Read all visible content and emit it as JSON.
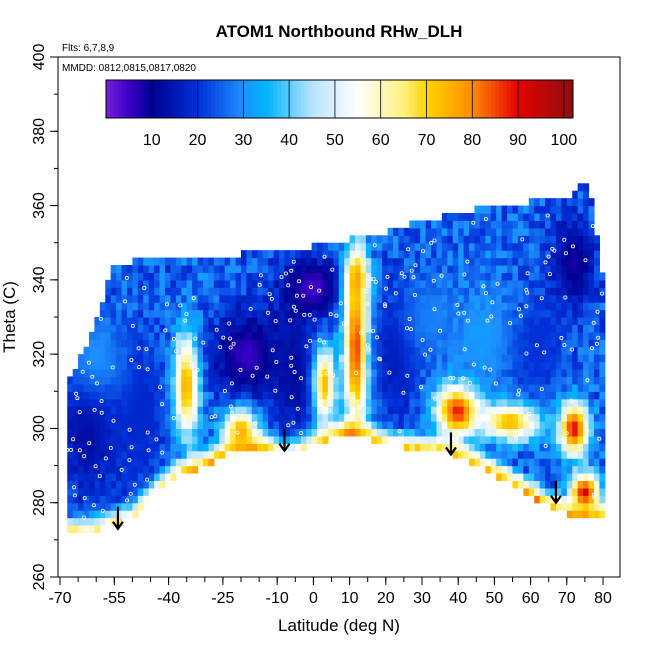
{
  "chart_data": {
    "type": "heatmap",
    "title": "ATOM1 Northbound RHw_DLH",
    "annotations": [
      "Flts: 6,7,8,9",
      "MMDD: 0812,0815,0817,0820"
    ],
    "xlabel": "Latitude (deg N)",
    "ylabel": "Theta (C)",
    "xlim": [
      -70,
      80
    ],
    "ylim": [
      260,
      400
    ],
    "x_major_ticks": [
      -70,
      -55,
      -40,
      -25,
      -10,
      0,
      10,
      20,
      30,
      40,
      50,
      60,
      70,
      80
    ],
    "x_tick_labels": [
      "-70",
      "-55",
      "-40",
      "-25",
      "-10",
      "0",
      "10",
      "20",
      "30",
      "40",
      "50",
      "60",
      "70",
      "80"
    ],
    "y_ticks": [
      260,
      280,
      300,
      320,
      340,
      360,
      380,
      400
    ],
    "y_tick_labels": [
      "260",
      "280",
      "300",
      "320",
      "340",
      "360",
      "380",
      "400"
    ],
    "colorbar": {
      "range": [
        0,
        102
      ],
      "ticks": [
        10,
        20,
        30,
        40,
        50,
        60,
        70,
        80,
        90,
        100
      ],
      "tick_labels": [
        "10",
        "20",
        "30",
        "40",
        "50",
        "60",
        "70",
        "80",
        "90",
        "100"
      ],
      "stops": [
        {
          "v": 0,
          "c": "#7a1fd6"
        },
        {
          "v": 5,
          "c": "#3a00c8"
        },
        {
          "v": 10,
          "c": "#000090"
        },
        {
          "v": 20,
          "c": "#0030d8"
        },
        {
          "v": 30,
          "c": "#1e90ff"
        },
        {
          "v": 35,
          "c": "#00b4ff"
        },
        {
          "v": 45,
          "c": "#b8e4ff"
        },
        {
          "v": 55,
          "c": "#ffffff"
        },
        {
          "v": 65,
          "c": "#fff080"
        },
        {
          "v": 70,
          "c": "#ffd400"
        },
        {
          "v": 80,
          "c": "#ff8c00"
        },
        {
          "v": 90,
          "c": "#e60000"
        },
        {
          "v": 102,
          "c": "#8b1010"
        }
      ]
    },
    "surface_lower_boundary": [
      {
        "lat": -68,
        "theta": 272
      },
      {
        "lat": -62,
        "theta": 272
      },
      {
        "lat": -56,
        "theta": 274
      },
      {
        "lat": -50,
        "theta": 276
      },
      {
        "lat": -44,
        "theta": 283
      },
      {
        "lat": -38,
        "theta": 287
      },
      {
        "lat": -30,
        "theta": 290
      },
      {
        "lat": -22,
        "theta": 294
      },
      {
        "lat": -14,
        "theta": 295
      },
      {
        "lat": -8,
        "theta": 293
      },
      {
        "lat": 0,
        "theta": 296
      },
      {
        "lat": 10,
        "theta": 299
      },
      {
        "lat": 20,
        "theta": 296
      },
      {
        "lat": 30,
        "theta": 294
      },
      {
        "lat": 38,
        "theta": 293
      },
      {
        "lat": 45,
        "theta": 290
      },
      {
        "lat": 55,
        "theta": 285
      },
      {
        "lat": 65,
        "theta": 279
      },
      {
        "lat": 72,
        "theta": 276
      },
      {
        "lat": 80,
        "theta": 276
      }
    ],
    "data_upper_boundary": [
      {
        "lat": -68,
        "theta": 312
      },
      {
        "lat": -62,
        "theta": 322
      },
      {
        "lat": -58,
        "theta": 334
      },
      {
        "lat": -55,
        "theta": 344
      },
      {
        "lat": -50,
        "theta": 344
      },
      {
        "lat": -40,
        "theta": 345
      },
      {
        "lat": -30,
        "theta": 346
      },
      {
        "lat": -20,
        "theta": 346
      },
      {
        "lat": -10,
        "theta": 347
      },
      {
        "lat": 0,
        "theta": 348
      },
      {
        "lat": 10,
        "theta": 350
      },
      {
        "lat": 20,
        "theta": 352
      },
      {
        "lat": 30,
        "theta": 355
      },
      {
        "lat": 40,
        "theta": 357
      },
      {
        "lat": 50,
        "theta": 359
      },
      {
        "lat": 60,
        "theta": 360
      },
      {
        "lat": 70,
        "theta": 361
      },
      {
        "lat": 76,
        "theta": 366
      },
      {
        "lat": 80,
        "theta": 340
      }
    ],
    "features": [
      {
        "lat": -62,
        "theta": 300,
        "value": 12,
        "r_lat": 9,
        "r_theta": 20
      },
      {
        "lat": -48,
        "theta": 305,
        "value": 18,
        "r_lat": 8,
        "r_theta": 22
      },
      {
        "lat": -60,
        "theta": 320,
        "value": 30,
        "r_lat": 8,
        "r_theta": 12
      },
      {
        "lat": -35,
        "theta": 312,
        "value": 78,
        "r_lat": 3.5,
        "r_theta": 14
      },
      {
        "lat": -20,
        "theta": 300,
        "value": 80,
        "r_lat": 5,
        "r_theta": 6
      },
      {
        "lat": -18,
        "theta": 320,
        "value": 5,
        "r_lat": 10,
        "r_theta": 12
      },
      {
        "lat": -5,
        "theta": 315,
        "value": 12,
        "r_lat": 7,
        "r_theta": 18
      },
      {
        "lat": 0,
        "theta": 338,
        "value": 4,
        "r_lat": 9,
        "r_theta": 8
      },
      {
        "lat": 3,
        "theta": 312,
        "value": 74,
        "r_lat": 3,
        "r_theta": 10
      },
      {
        "lat": 12,
        "theta": 322,
        "value": 92,
        "r_lat": 3.5,
        "r_theta": 22
      },
      {
        "lat": 12,
        "theta": 340,
        "value": 78,
        "r_lat": 3,
        "r_theta": 8
      },
      {
        "lat": 23,
        "theta": 320,
        "value": 15,
        "r_lat": 7,
        "r_theta": 18
      },
      {
        "lat": 32,
        "theta": 330,
        "value": 28,
        "r_lat": 8,
        "r_theta": 12
      },
      {
        "lat": 40,
        "theta": 305,
        "value": 92,
        "r_lat": 6,
        "r_theta": 7
      },
      {
        "lat": 48,
        "theta": 325,
        "value": 32,
        "r_lat": 9,
        "r_theta": 14
      },
      {
        "lat": 55,
        "theta": 302,
        "value": 80,
        "r_lat": 8,
        "r_theta": 5
      },
      {
        "lat": 62,
        "theta": 322,
        "value": 20,
        "r_lat": 8,
        "r_theta": 16
      },
      {
        "lat": 72,
        "theta": 300,
        "value": 90,
        "r_lat": 4,
        "r_theta": 7
      },
      {
        "lat": 75,
        "theta": 283,
        "value": 92,
        "r_lat": 4,
        "r_theta": 5
      },
      {
        "lat": 72,
        "theta": 345,
        "value": 8,
        "r_lat": 6,
        "r_theta": 12
      }
    ],
    "background_value": 25,
    "surface_band_value": 78,
    "surface_band_theta_width": 6,
    "arrows": [
      {
        "lat": -54,
        "theta": 273
      },
      {
        "lat": -8,
        "theta": 294
      },
      {
        "lat": 38,
        "theta": 293
      },
      {
        "lat": 67,
        "theta": 280
      }
    ],
    "arrow_color": "#000000",
    "observation_marker_color": "#ffffff",
    "frame_color": "#000000"
  }
}
